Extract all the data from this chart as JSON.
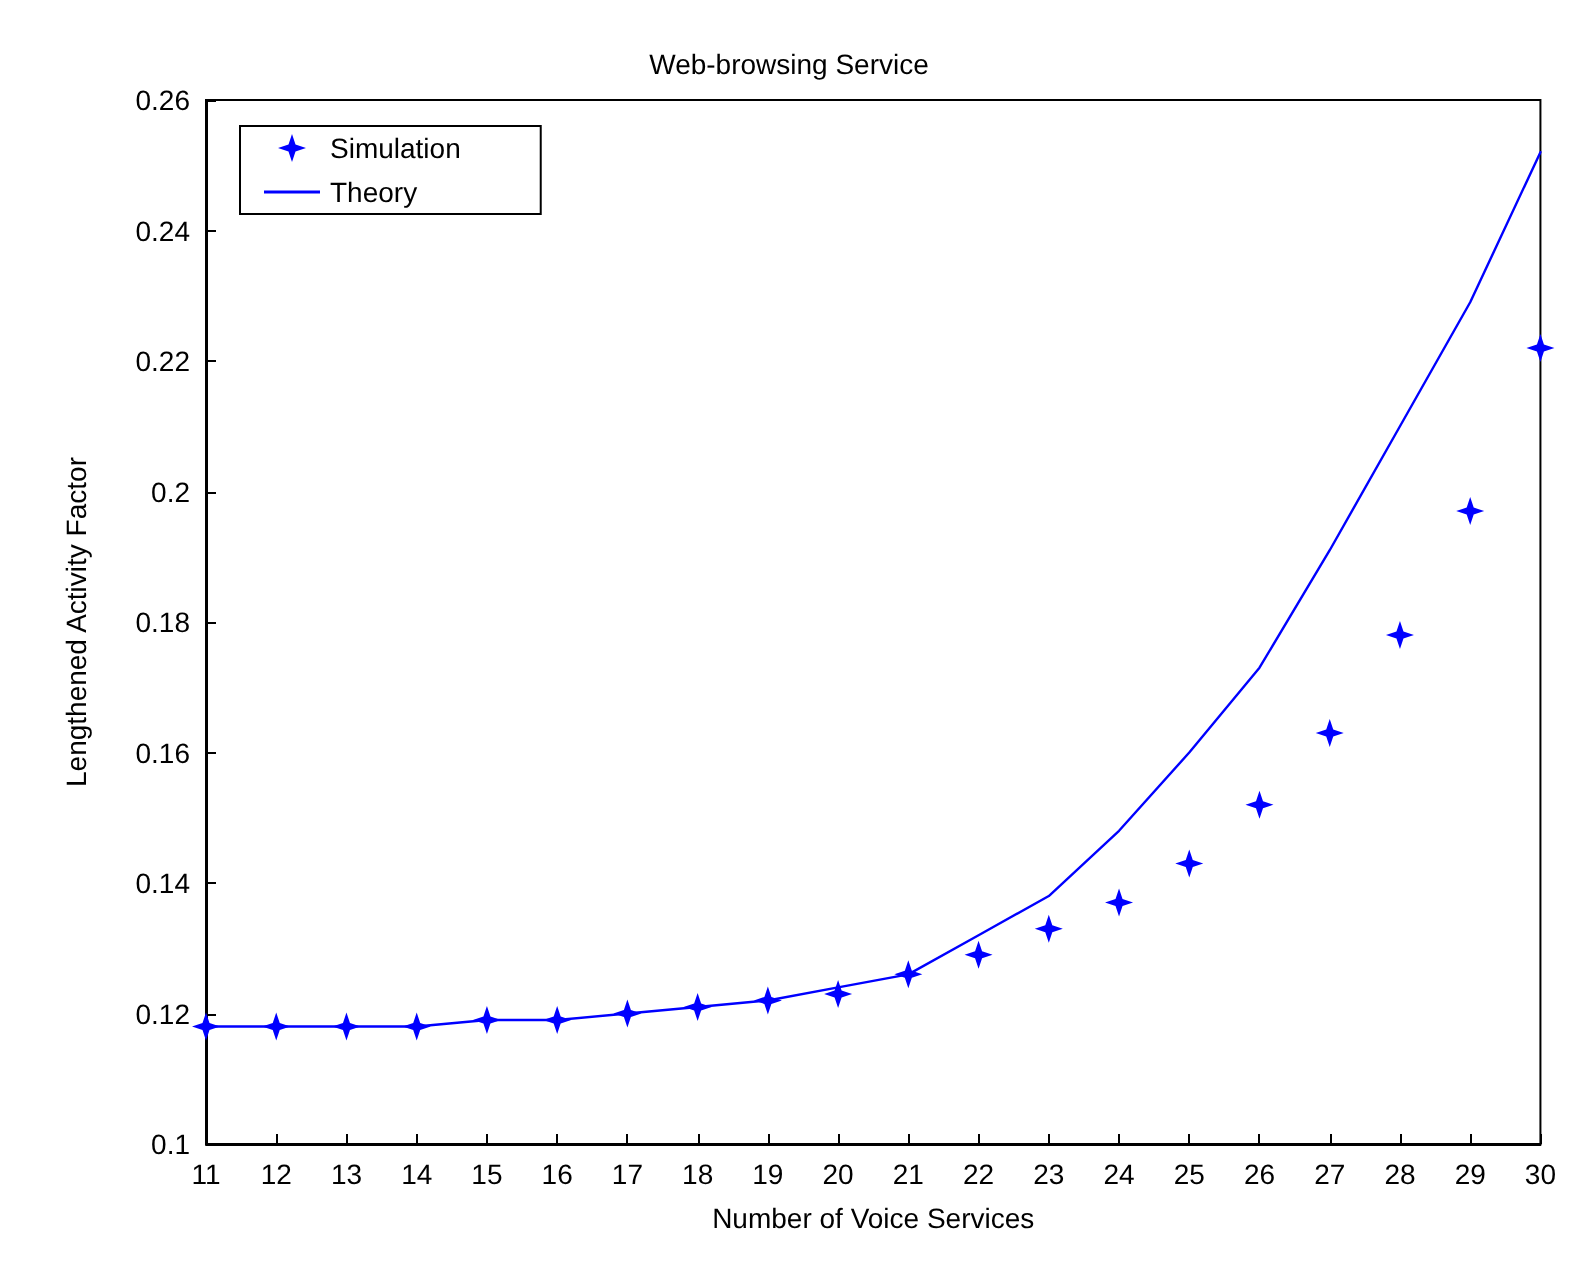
{
  "chart_data": {
    "type": "scatter",
    "title": "Web-browsing Service",
    "xlabel": "Number of Voice Services",
    "ylabel": "Lengthened Activity Factor",
    "x": [
      11,
      12,
      13,
      14,
      15,
      16,
      17,
      18,
      19,
      20,
      21,
      22,
      23,
      24,
      25,
      26,
      27,
      28,
      29,
      30
    ],
    "xlim": [
      11,
      30
    ],
    "xticks": [
      11,
      12,
      13,
      14,
      15,
      16,
      17,
      18,
      19,
      20,
      21,
      22,
      23,
      24,
      25,
      26,
      27,
      28,
      29,
      30
    ],
    "ylim": [
      0.1,
      0.26
    ],
    "yticks": [
      0.1,
      0.12,
      0.14,
      0.16,
      0.18,
      0.2,
      0.22,
      0.24,
      0.26
    ],
    "grid": false,
    "legend": "top left",
    "series": [
      {
        "name": "Simulation",
        "marker": "star",
        "color": "#0000ff",
        "values": [
          0.118,
          0.118,
          0.118,
          0.118,
          0.119,
          0.119,
          0.12,
          0.121,
          0.122,
          0.123,
          0.126,
          0.129,
          0.133,
          0.137,
          0.143,
          0.152,
          0.163,
          0.178,
          0.197,
          0.222
        ]
      },
      {
        "name": "Theory",
        "type": "line",
        "marker": "none",
        "line_style": "solid",
        "color": "#0000ff",
        "values": [
          0.118,
          0.118,
          0.118,
          0.118,
          0.119,
          0.119,
          0.12,
          0.121,
          0.122,
          0.124,
          0.126,
          0.132,
          0.138,
          0.148,
          0.16,
          0.173,
          0.191,
          0.21,
          0.229,
          0.252
        ]
      }
    ]
  }
}
